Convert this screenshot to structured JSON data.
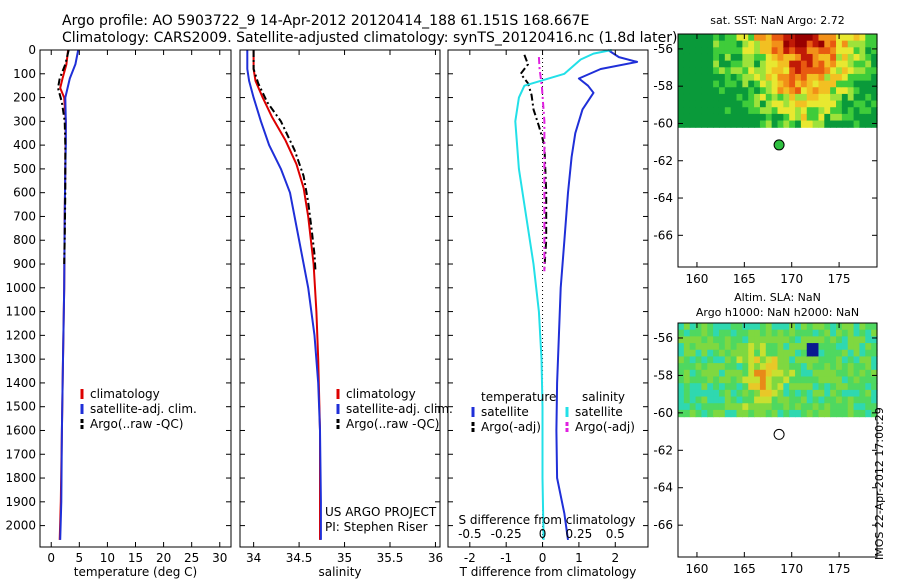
{
  "titles": {
    "line1": "Argo profile: AO 5903722_9 14-Apr-2012 20120414_188 61.151S 168.667E",
    "line2": "Climatology: CARS2009. Satellite-adjusted climatology: synTS_20120416.nc (1.8d later)"
  },
  "stamp": "IMOS 22-Apr-2012 17:00:29",
  "colors": {
    "clim": "#dd0000",
    "sat": "#1f2fd8",
    "argo": "#000000",
    "s_sat": "#22e0e8",
    "s_argo": "#e020e0"
  },
  "chart_data": [
    {
      "type": "line",
      "xlabel": "temperature (deg C)",
      "ylabel": "",
      "xlim": [
        -2,
        32
      ],
      "ylim": [
        2090,
        0
      ],
      "xticks": [
        "0",
        "5",
        "10",
        "15",
        "20",
        "25",
        "30"
      ],
      "xtick_values": [
        0,
        5,
        10,
        15,
        20,
        25,
        30
      ],
      "yticks": [
        "0",
        "100",
        "200",
        "300",
        "400",
        "500",
        "600",
        "700",
        "800",
        "900",
        "1000",
        "1100",
        "1200",
        "1300",
        "1400",
        "1500",
        "1600",
        "1700",
        "1800",
        "1900",
        "2000"
      ],
      "ytick_values": [
        0,
        100,
        200,
        300,
        400,
        500,
        600,
        700,
        800,
        900,
        1000,
        1100,
        1200,
        1300,
        1400,
        1500,
        1600,
        1700,
        1800,
        1900,
        2000
      ],
      "legend": {
        "position": "lower-middle",
        "entries": [
          "climatology",
          "satellite-adj. clim.",
          "Argo(..raw -QC)"
        ]
      },
      "series": [
        {
          "name": "climatology",
          "color": "clim",
          "dash": "solid",
          "x": [
            3.0,
            2.7,
            2.0,
            1.6,
            2.3,
            2.6,
            2.5,
            2.4,
            2.3,
            2.1,
            1.9,
            1.7,
            1.5
          ],
          "y": [
            0,
            60,
            120,
            160,
            200,
            300,
            500,
            700,
            1000,
            1300,
            1600,
            1900,
            2060
          ]
        },
        {
          "name": "satellite-adj. clim.",
          "color": "sat",
          "dash": "solid",
          "x": [
            4.8,
            4.3,
            3.3,
            2.5,
            2.6,
            2.6,
            2.5,
            2.4,
            2.3,
            2.1,
            1.9,
            1.8,
            1.6
          ],
          "y": [
            0,
            60,
            120,
            200,
            300,
            400,
            500,
            700,
            1000,
            1300,
            1600,
            1900,
            2060
          ]
        },
        {
          "name": "Argo(..raw -QC)",
          "color": "argo",
          "dash": "dash",
          "x": [
            3.1,
            2.5,
            1.5,
            1.2,
            1.9,
            2.4,
            2.5,
            2.5,
            2.4,
            2.3
          ],
          "y": [
            0,
            60,
            120,
            160,
            220,
            300,
            400,
            600,
            800,
            900
          ]
        }
      ]
    },
    {
      "type": "line",
      "xlabel": "salinity",
      "ylabel": "",
      "xlim": [
        33.85,
        36.05
      ],
      "ylim": [
        2090,
        0
      ],
      "xticks": [
        "34",
        "34.5",
        "35",
        "35.5",
        "36"
      ],
      "xtick_values": [
        34,
        34.5,
        35,
        35.5,
        36
      ],
      "legend": {
        "position": "lower-right",
        "entries": [
          "climatology",
          "satellite-adj. clim.",
          "Argo(..raw -QC)"
        ]
      },
      "annotations": [
        "US ARGO PROJECT",
        "PI: Stephen Riser"
      ],
      "series": [
        {
          "name": "climatology",
          "color": "clim",
          "dash": "solid",
          "x": [
            34.0,
            34.0,
            34.02,
            34.1,
            34.2,
            34.35,
            34.47,
            34.55,
            34.6,
            34.63,
            34.66,
            34.69,
            34.71,
            34.73,
            34.73
          ],
          "y": [
            0,
            80,
            130,
            200,
            280,
            380,
            480,
            580,
            700,
            800,
            900,
            1100,
            1300,
            1600,
            2060
          ]
        },
        {
          "name": "satellite-adj. clim.",
          "color": "sat",
          "dash": "solid",
          "x": [
            33.93,
            33.93,
            33.95,
            34.0,
            34.08,
            34.17,
            34.3,
            34.4,
            34.5,
            34.6,
            34.67,
            34.71,
            34.73,
            34.74,
            34.74
          ],
          "y": [
            0,
            80,
            130,
            200,
            300,
            400,
            500,
            600,
            800,
            1000,
            1200,
            1400,
            1600,
            1900,
            2060
          ]
        },
        {
          "name": "Argo(..raw -QC)",
          "color": "argo",
          "dash": "dash",
          "x": [
            34.0,
            34.0,
            34.05,
            34.15,
            34.3,
            34.45,
            34.55,
            34.6,
            34.64,
            34.67,
            34.68
          ],
          "y": [
            0,
            80,
            140,
            220,
            300,
            420,
            530,
            640,
            760,
            860,
            930
          ]
        }
      ]
    },
    {
      "type": "line",
      "xlabel": "T difference from climatology",
      "ylabel": "",
      "title_bottom": "S difference from climatology",
      "xlim": [
        -2.6,
        2.9
      ],
      "ylim": [
        2090,
        0
      ],
      "xticks": [
        "-2",
        "-1",
        "0",
        "1",
        "2"
      ],
      "xtick_values": [
        -2,
        -1,
        0,
        1,
        2
      ],
      "s_xticks": [
        "-0.5",
        "-0.25",
        "0",
        "0.25",
        "0.5"
      ],
      "s_xtick_values": [
        -0.5,
        -0.25,
        0,
        0.25,
        0.5
      ],
      "legend": {
        "position": "lower-middle",
        "groups": [
          {
            "heading": "temperature",
            "entries": [
              "satellite",
              "Argo(-adj)"
            ]
          },
          {
            "heading": "salinity",
            "entries": [
              "satellite",
              "Argo(-adj)"
            ]
          }
        ]
      },
      "series": [
        {
          "name": "temperature satellite",
          "color": "sat",
          "dash": "solid",
          "x": [
            1.8,
            2.1,
            2.6,
            1.6,
            1.0,
            1.25,
            1.4,
            1.1,
            0.9,
            0.8,
            0.7,
            0.6,
            0.5,
            0.45,
            0.4,
            0.38,
            0.4,
            0.6,
            0.7
          ],
          "y": [
            0,
            30,
            50,
            80,
            120,
            150,
            180,
            250,
            350,
            450,
            600,
            800,
            1000,
            1200,
            1400,
            1600,
            1800,
            1950,
            2060
          ]
        },
        {
          "name": "temperature Argo(-adj)",
          "color": "argo",
          "dash": "dash",
          "x": [
            -0.5,
            -0.4,
            -0.6,
            -0.4,
            -0.3,
            -0.25,
            -0.1,
            0.05,
            0.1,
            0.1,
            0.05
          ],
          "y": [
            20,
            60,
            100,
            140,
            190,
            250,
            320,
            400,
            600,
            800,
            920
          ]
        },
        {
          "name": "salinity satellite",
          "color": "s_sat",
          "dash": "solid",
          "x": [
            1.9,
            1.4,
            1.05,
            0.6,
            -0.5,
            -0.65,
            -0.75,
            -0.65,
            -0.45,
            -0.25,
            -0.1,
            -0.03,
            0.0,
            0.0,
            0.03
          ],
          "y": [
            0,
            15,
            40,
            100,
            150,
            200,
            300,
            500,
            700,
            900,
            1100,
            1300,
            1500,
            1800,
            2060
          ]
        },
        {
          "name": "salinity Argo(-adj)",
          "color": "s_argo",
          "dash": "dash",
          "x": [
            -0.1,
            -0.08,
            -0.02,
            0.05,
            0.05,
            0.05
          ],
          "y": [
            30,
            80,
            150,
            300,
            600,
            930
          ]
        }
      ]
    },
    {
      "type": "heatmap",
      "title": "sat. SST: NaN Argo: 2.72",
      "xlim": [
        158,
        179
      ],
      "ylim": [
        -67.7,
        -55.2
      ],
      "xticks": [
        "160",
        "165",
        "170",
        "175"
      ],
      "xtick_values": [
        160,
        165,
        170,
        175
      ],
      "yticks": [
        "-56",
        "-58",
        "-60",
        "-62",
        "-64",
        "-66"
      ],
      "ytick_values": [
        -56,
        -58,
        -60,
        -62,
        -64,
        -66
      ],
      "data_extent": {
        "lon": [
          158,
          179
        ],
        "lat": [
          -60.2,
          -55.2
        ]
      },
      "marker": {
        "lon": 168.667,
        "lat": -61.151,
        "fill": "#2fc040"
      }
    },
    {
      "type": "heatmap",
      "title": "Altim. SLA: NaN",
      "subtitle": "Argo h1000: NaN h2000: NaN",
      "xlim": [
        158,
        179
      ],
      "ylim": [
        -67.7,
        -55.2
      ],
      "xticks": [
        "160",
        "165",
        "170",
        "175"
      ],
      "xtick_values": [
        160,
        165,
        170,
        175
      ],
      "yticks": [
        "-56",
        "-58",
        "-60",
        "-62",
        "-64",
        "-66"
      ],
      "ytick_values": [
        -56,
        -58,
        -60,
        -62,
        -64,
        -66
      ],
      "data_extent": {
        "lon": [
          158,
          179
        ],
        "lat": [
          -60.2,
          -55.2
        ]
      },
      "marker": {
        "lon": 168.667,
        "lat": -61.151,
        "fill": "#ffffff"
      }
    }
  ]
}
